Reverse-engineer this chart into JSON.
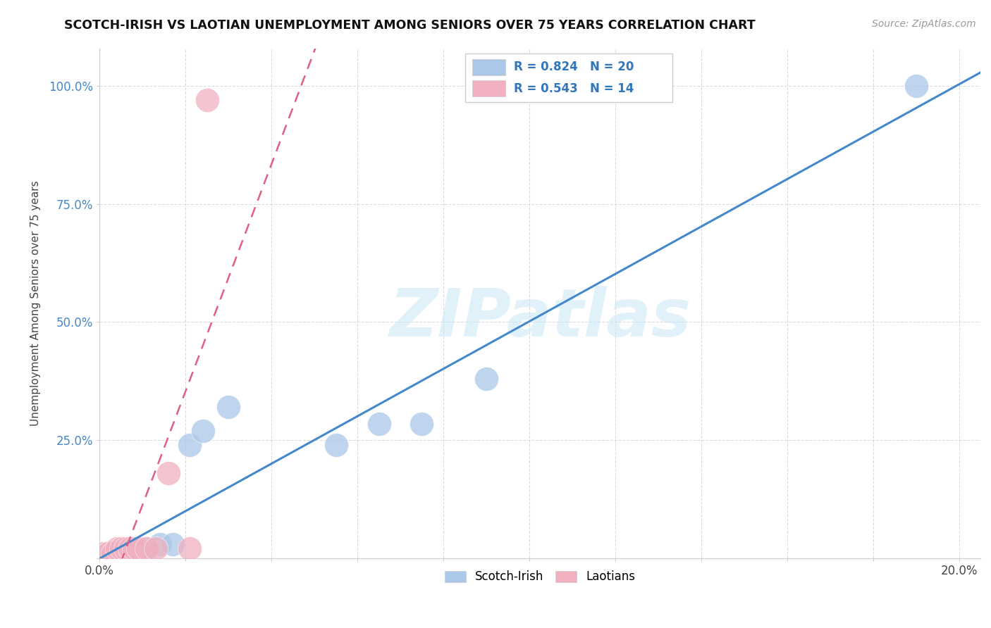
{
  "title": "SCOTCH-IRISH VS LAOTIAN UNEMPLOYMENT AMONG SENIORS OVER 75 YEARS CORRELATION CHART",
  "source": "Source: ZipAtlas.com",
  "ylabel_label": "Unemployment Among Seniors over 75 years",
  "xmin": 0.0,
  "xmax": 0.205,
  "ymin": 0.0,
  "ymax": 1.08,
  "scotch_irish_r": 0.824,
  "scotch_irish_n": 20,
  "laotian_r": 0.543,
  "laotian_n": 14,
  "scotch_irish_color": "#aac8e8",
  "scotch_irish_line_color": "#4488cc",
  "laotian_color": "#f0b0c0",
  "laotian_line_color": "#e06080",
  "watermark": "ZIPatlas",
  "scotch_irish_x": [
    0.001,
    0.002,
    0.003,
    0.004,
    0.005,
    0.006,
    0.007,
    0.008,
    0.009,
    0.011,
    0.014,
    0.017,
    0.021,
    0.024,
    0.03,
    0.055,
    0.065,
    0.075,
    0.09,
    0.19
  ],
  "scotch_irish_y": [
    0.0,
    0.0,
    0.0,
    0.01,
    0.01,
    0.01,
    0.01,
    0.02,
    0.02,
    0.02,
    0.03,
    0.03,
    0.24,
    0.27,
    0.32,
    0.24,
    0.285,
    0.285,
    0.38,
    1.0
  ],
  "laotian_x": [
    0.001,
    0.002,
    0.003,
    0.004,
    0.005,
    0.006,
    0.007,
    0.008,
    0.009,
    0.011,
    0.013,
    0.016,
    0.021,
    0.025
  ],
  "laotian_y": [
    0.01,
    0.01,
    0.01,
    0.02,
    0.02,
    0.02,
    0.02,
    0.02,
    0.02,
    0.02,
    0.02,
    0.18,
    0.02,
    0.97
  ],
  "background_color": "#ffffff",
  "grid_color": "#cccccc"
}
